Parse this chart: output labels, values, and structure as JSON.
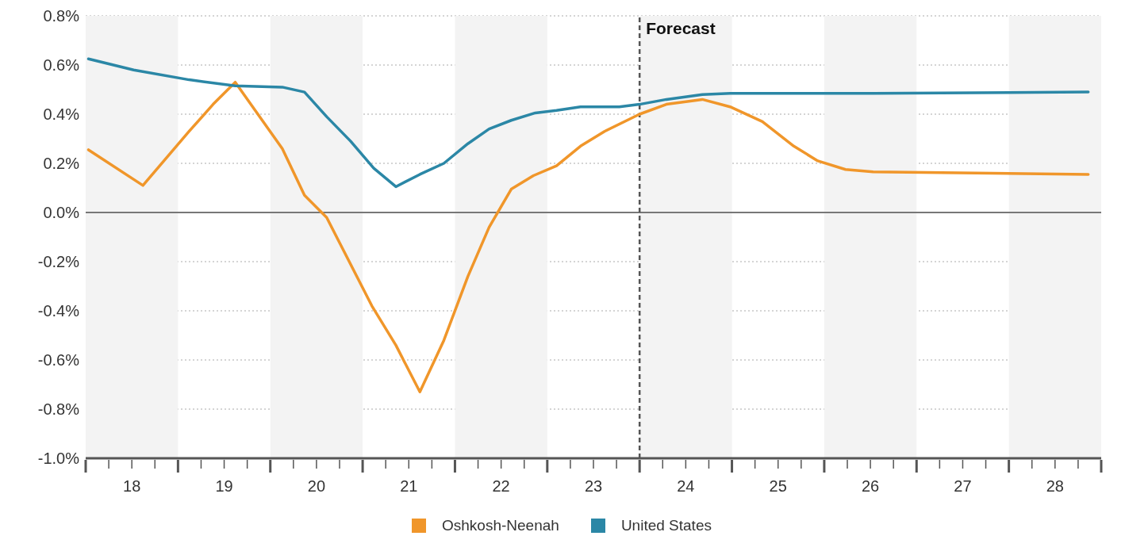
{
  "chart_data": {
    "type": "line",
    "xlim": [
      17.5,
      28.5
    ],
    "xticks": [
      {
        "value": 17.5,
        "label": null
      },
      {
        "value": 17.75,
        "label": null
      },
      {
        "value": 18,
        "label": "18"
      },
      {
        "value": 18.25,
        "label": null
      },
      {
        "value": 18.5,
        "label": null
      },
      {
        "value": 18.75,
        "label": null
      },
      {
        "value": 19,
        "label": "19"
      },
      {
        "value": 19.25,
        "label": null
      },
      {
        "value": 19.5,
        "label": null
      },
      {
        "value": 19.75,
        "label": null
      },
      {
        "value": 20,
        "label": "20"
      },
      {
        "value": 20.25,
        "label": null
      },
      {
        "value": 20.5,
        "label": null
      },
      {
        "value": 20.75,
        "label": null
      },
      {
        "value": 21,
        "label": "21"
      },
      {
        "value": 21.25,
        "label": null
      },
      {
        "value": 21.5,
        "label": null
      },
      {
        "value": 21.75,
        "label": null
      },
      {
        "value": 22,
        "label": "22"
      },
      {
        "value": 22.25,
        "label": null
      },
      {
        "value": 22.5,
        "label": null
      },
      {
        "value": 22.75,
        "label": null
      },
      {
        "value": 23,
        "label": "23"
      },
      {
        "value": 23.25,
        "label": null
      },
      {
        "value": 23.5,
        "label": null
      },
      {
        "value": 23.75,
        "label": null
      },
      {
        "value": 24,
        "label": "24"
      },
      {
        "value": 24.25,
        "label": null
      },
      {
        "value": 24.5,
        "label": null
      },
      {
        "value": 24.75,
        "label": null
      },
      {
        "value": 25,
        "label": "25"
      },
      {
        "value": 25.25,
        "label": null
      },
      {
        "value": 25.5,
        "label": null
      },
      {
        "value": 25.75,
        "label": null
      },
      {
        "value": 26,
        "label": "26"
      },
      {
        "value": 26.25,
        "label": null
      },
      {
        "value": 26.5,
        "label": null
      },
      {
        "value": 26.75,
        "label": null
      },
      {
        "value": 27,
        "label": "27"
      },
      {
        "value": 27.25,
        "label": null
      },
      {
        "value": 27.5,
        "label": null
      },
      {
        "value": 27.75,
        "label": null
      },
      {
        "value": 28,
        "label": "28"
      },
      {
        "value": 28.25,
        "label": null
      },
      {
        "value": 28.5,
        "label": null
      }
    ],
    "ylim": [
      -1.0,
      0.8
    ],
    "yticks": [
      {
        "value": -1.0,
        "label": "-1.0%"
      },
      {
        "value": -0.8,
        "label": "-0.8%"
      },
      {
        "value": -0.6,
        "label": "-0.6%"
      },
      {
        "value": -0.4,
        "label": "-0.4%"
      },
      {
        "value": -0.2,
        "label": "-0.2%"
      },
      {
        "value": 0,
        "label": "0.0%"
      },
      {
        "value": 0.2,
        "label": "0.2%"
      },
      {
        "value": 0.4,
        "label": "0.4%"
      },
      {
        "value": 0.6,
        "label": "0.6%"
      },
      {
        "value": 0.8,
        "label": "0.8%"
      }
    ],
    "grid": "y",
    "legend": "bottom",
    "marker": "none",
    "line_style": "solid",
    "bands": [
      {
        "axis": "x",
        "from": 17.5,
        "to": 18.5,
        "color": "#f3f3f3"
      },
      {
        "axis": "x",
        "from": 19.5,
        "to": 20.5,
        "color": "#f3f3f3"
      },
      {
        "axis": "x",
        "from": 21.5,
        "to": 22.5,
        "color": "#f3f3f3"
      },
      {
        "axis": "x",
        "from": 23.5,
        "to": 24.5,
        "color": "#f3f3f3"
      },
      {
        "axis": "x",
        "from": 25.5,
        "to": 26.5,
        "color": "#f3f3f3"
      },
      {
        "axis": "x",
        "from": 27.5,
        "to": 28.5,
        "color": "#f3f3f3"
      }
    ],
    "ref_lines": [
      {
        "axis": "y",
        "value": 0,
        "label": null,
        "color": "#777777",
        "line_style": "solid"
      },
      {
        "axis": "x",
        "value": 23.5,
        "label": "Forecast",
        "color": "#555555",
        "line_style": "dashed"
      }
    ],
    "series": [
      {
        "name": "Oshkosh-Neenah",
        "color": "#f0962a",
        "x": [
          17.53,
          18.12,
          18.62,
          18.88,
          19.12,
          19.63,
          19.87,
          20.11,
          20.6,
          20.86,
          21.12,
          21.38,
          21.64,
          21.87,
          22.11,
          22.35,
          22.6,
          22.86,
          23.12,
          23.5,
          23.79,
          24.18,
          24.48,
          24.83,
          25.17,
          25.43,
          25.73,
          26.03,
          27.33,
          28.36
        ],
        "values": [
          0.255,
          0.11,
          0.33,
          0.44,
          0.53,
          0.26,
          0.07,
          -0.02,
          -0.38,
          -0.54,
          -0.73,
          -0.52,
          -0.26,
          -0.06,
          0.095,
          0.15,
          0.19,
          0.27,
          0.33,
          0.4,
          0.44,
          0.46,
          0.43,
          0.37,
          0.27,
          0.21,
          0.175,
          0.165,
          0.16,
          0.155
        ]
      },
      {
        "name": "United States",
        "color": "#2b87a6",
        "x": [
          17.53,
          18.02,
          18.62,
          19.12,
          19.63,
          19.87,
          20.11,
          20.37,
          20.62,
          20.86,
          21.12,
          21.38,
          21.64,
          21.87,
          22.11,
          22.37,
          22.6,
          22.86,
          23.28,
          23.5,
          23.79,
          24.18,
          24.48,
          26.03,
          28.36
        ],
        "values": [
          0.625,
          0.58,
          0.54,
          0.515,
          0.51,
          0.49,
          0.39,
          0.29,
          0.18,
          0.105,
          0.155,
          0.2,
          0.28,
          0.34,
          0.375,
          0.405,
          0.415,
          0.43,
          0.43,
          0.44,
          0.46,
          0.48,
          0.485,
          0.485,
          0.49
        ]
      }
    ]
  }
}
